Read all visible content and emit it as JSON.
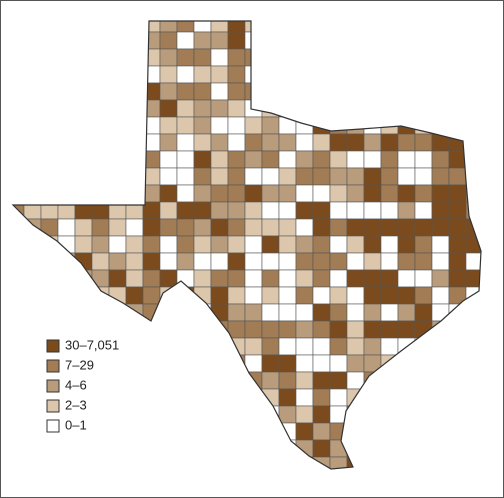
{
  "legend": {
    "items": [
      {
        "label": "30–7,051",
        "color": "#7b4b1d"
      },
      {
        "label": "7–29",
        "color": "#a17c55"
      },
      {
        "label": "4–6",
        "color": "#b99c7c"
      },
      {
        "label": "2–3",
        "color": "#dcc7ad"
      },
      {
        "label": "0–1",
        "color": "#ffffff"
      }
    ]
  }
}
